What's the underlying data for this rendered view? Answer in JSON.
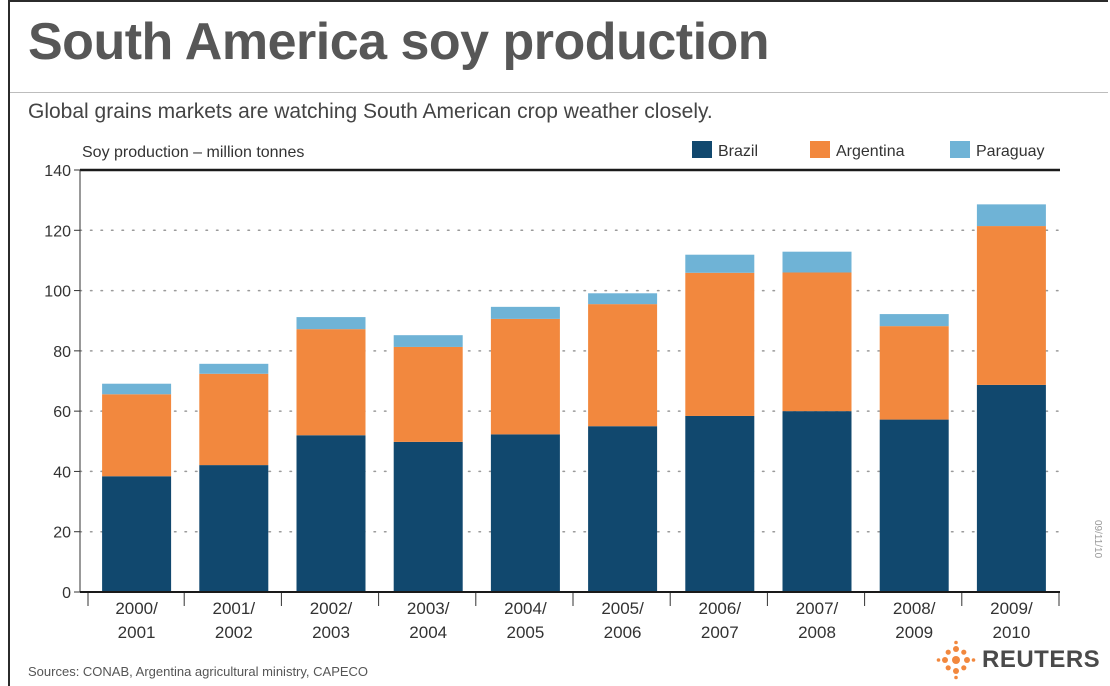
{
  "title": "South America soy production",
  "subtitle": "Global grains markets are watching South American crop weather closely.",
  "sources": "Sources: CONAB, Argentina agricultural ministry, CAPECO",
  "logo": "REUTERS",
  "side_code": "09/11/10",
  "colors": {
    "Brazil": "#11486e",
    "Argentina": "#f2883e",
    "Paraguay": "#6fb3d6",
    "axis": "#1a1a1a",
    "grid": "#9a9a9a"
  },
  "chart_data": {
    "type": "bar",
    "stacked": true,
    "ylabel": "Soy production – million tonnes",
    "ylim": [
      0,
      140
    ],
    "yticks": [
      0,
      20,
      40,
      60,
      80,
      100,
      120,
      140
    ],
    "grid": true,
    "legend_position": "top-right",
    "categories": [
      "2000/\n2001",
      "2001/\n2002",
      "2002/\n2003",
      "2003/\n2004",
      "2004/\n2005",
      "2005/\n2006",
      "2006/\n2007",
      "2007/\n2008",
      "2008/\n2009",
      "2009/\n2010"
    ],
    "series": [
      {
        "name": "Brazil",
        "values": [
          38.4,
          42.1,
          52.0,
          49.8,
          52.3,
          55.0,
          58.4,
          60.0,
          57.2,
          68.7
        ]
      },
      {
        "name": "Argentina",
        "values": [
          27.2,
          30.3,
          35.2,
          31.5,
          38.3,
          40.5,
          47.5,
          46.0,
          31.0,
          52.7
        ]
      },
      {
        "name": "Paraguay",
        "values": [
          3.5,
          3.3,
          4.0,
          3.9,
          4.0,
          3.6,
          6.0,
          6.9,
          4.0,
          7.2
        ]
      }
    ]
  }
}
